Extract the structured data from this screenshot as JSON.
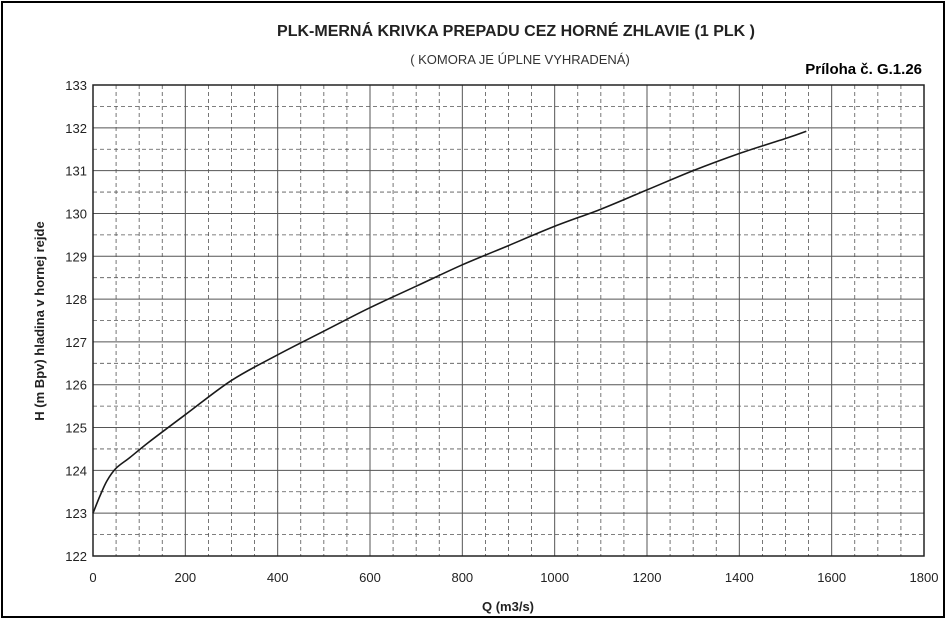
{
  "chart_data": {
    "type": "line",
    "title": "PLK-MERNÁ KRIVKA PREPADU CEZ HORNÉ ZHLAVIE  (1 PLK )",
    "subtitle": "( KOMORA JE ÚPLNE VYHRADENÁ)",
    "annex_label": "Príloha č. G.1.26",
    "xlabel": "Q (m3/s)",
    "ylabel": "H (m Bpv) hladina v hornej rejde",
    "xlim": [
      0,
      1800
    ],
    "ylim": [
      122,
      133
    ],
    "xticks": [
      "0",
      "200",
      "400",
      "600",
      "800",
      "1000",
      "1200",
      "1400",
      "1600",
      "1800"
    ],
    "yticks": [
      "122",
      "123",
      "124",
      "125",
      "126",
      "127",
      "128",
      "129",
      "130",
      "131",
      "132",
      "133"
    ],
    "grid": true,
    "series": [
      {
        "x": [
          0,
          15,
          30,
          50,
          80,
          120,
          200,
          300,
          400,
          500,
          600,
          700,
          800,
          900,
          1000,
          1100,
          1200,
          1300,
          1400,
          1500,
          1545
        ],
        "y": [
          123.0,
          123.4,
          123.75,
          124.05,
          124.3,
          124.65,
          125.3,
          126.1,
          126.7,
          127.25,
          127.8,
          128.3,
          128.8,
          129.25,
          129.7,
          130.1,
          130.55,
          131.0,
          131.4,
          131.75,
          131.92
        ]
      }
    ],
    "colors": {
      "line": "#1a1a1a",
      "grid": "#555555",
      "background": "#ffffff"
    }
  }
}
